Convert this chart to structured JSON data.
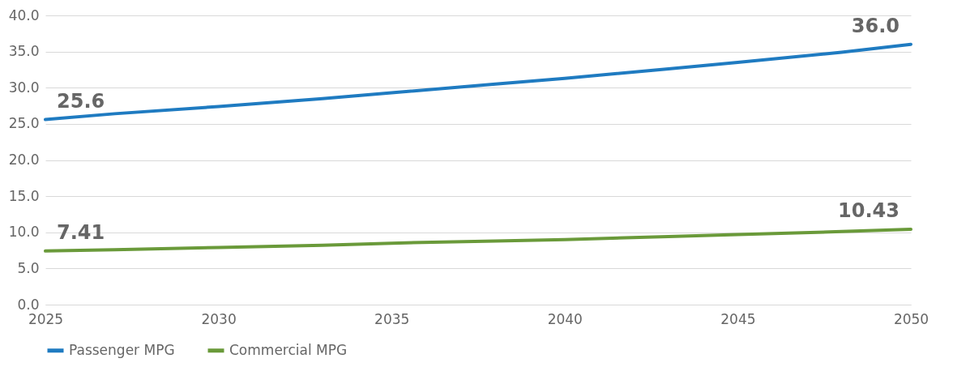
{
  "chart_data": {
    "type": "line",
    "x": [
      2025,
      2027,
      2030,
      2033,
      2035,
      2038,
      2040,
      2043,
      2045,
      2048,
      2050
    ],
    "series": [
      {
        "name": "Passenger MPG",
        "color": "#1f7bc1",
        "values": [
          25.6,
          26.4,
          27.4,
          28.5,
          29.3,
          30.5,
          31.3,
          32.6,
          33.5,
          34.9,
          36.0
        ],
        "value_labels": [
          "25.6",
          null,
          null,
          null,
          null,
          null,
          null,
          null,
          null,
          null,
          "36.0"
        ]
      },
      {
        "name": "Commercial MPG",
        "color": "#6a9a3a",
        "values": [
          7.41,
          7.6,
          7.9,
          8.2,
          8.5,
          8.8,
          9.0,
          9.4,
          9.7,
          10.1,
          10.43
        ],
        "value_labels": [
          "7.41",
          null,
          null,
          null,
          null,
          null,
          null,
          null,
          null,
          null,
          "10.43"
        ]
      }
    ],
    "xlim": [
      2025,
      2050
    ],
    "xticks": [
      2025,
      2030,
      2035,
      2040,
      2045,
      2050
    ],
    "ylim": [
      0,
      40
    ],
    "yticks": [
      {
        "value": 0,
        "label": "0.0"
      },
      {
        "value": 5,
        "label": "5.0"
      },
      {
        "value": 10,
        "label": "10.0"
      },
      {
        "value": 15,
        "label": "15.0"
      },
      {
        "value": 20,
        "label": "20.0"
      },
      {
        "value": 25,
        "label": "25.0"
      },
      {
        "value": 30,
        "label": "30.0"
      },
      {
        "value": 35,
        "label": "35.0"
      },
      {
        "value": 40,
        "label": "40.0"
      }
    ],
    "grid": "y",
    "legend": "bottom",
    "line_style": "solid"
  }
}
